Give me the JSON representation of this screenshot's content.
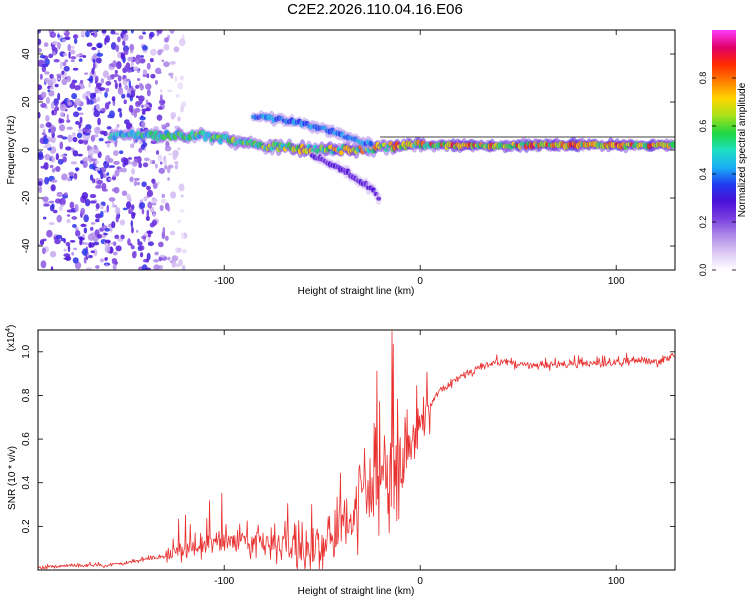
{
  "title": "C2E2.2026.110.04.16.E06",
  "colors": {
    "snr_line": "#e8302f",
    "colormap": [
      "#ffffff",
      "#ddc9f5",
      "#b08be8",
      "#7a3fe0",
      "#4b0fd8",
      "#1f3cf0",
      "#1ab0f5",
      "#1ee0c0",
      "#20d640",
      "#a8e31a",
      "#ffd400",
      "#ff8000",
      "#ff2a00",
      "#e0006a",
      "#ff3cff"
    ]
  },
  "chart_data": [
    {
      "type": "heatmap",
      "title": "",
      "xlabel": "Height of straight line (km)",
      "ylabel": "Frequency (Hz)",
      "xlim": [
        -195,
        130
      ],
      "ylim": [
        -50,
        50
      ],
      "xticks": [
        -100,
        0,
        100
      ],
      "yticks": [
        -40,
        -20,
        0,
        20,
        40
      ],
      "colorbar": {
        "label": "Normalized spectral amplitude",
        "range": [
          0,
          1
        ],
        "ticks": [
          0.0,
          0.2,
          0.4,
          0.6,
          0.8
        ]
      },
      "features": [
        {
          "name": "noise region",
          "x_range": [
            -195,
            -120
          ],
          "freq_range": [
            -50,
            50
          ],
          "amplitude": 0.25
        },
        {
          "name": "main band",
          "x_range": [
            -158,
            130
          ],
          "freq": [
            [
              -158,
              6
            ],
            [
              -110,
              6
            ],
            [
              -90,
              3
            ],
            [
              -70,
              1
            ],
            [
              -40,
              0
            ],
            [
              -20,
              1
            ],
            [
              0,
              2
            ],
            [
              50,
              2
            ],
            [
              130,
              2
            ]
          ],
          "amplitude": [
            0.3,
            0.9
          ]
        },
        {
          "name": "upper branch",
          "x_range": [
            -85,
            -25
          ],
          "freq": [
            [
              -85,
              14
            ],
            [
              -65,
              12
            ],
            [
              -45,
              8
            ],
            [
              -30,
              3
            ]
          ],
          "amplitude": 0.45
        },
        {
          "name": "lower branch",
          "x_range": [
            -55,
            -20
          ],
          "freq": [
            [
              -55,
              -2
            ],
            [
              -40,
              -8
            ],
            [
              -25,
              -16
            ],
            [
              -20,
              -21
            ]
          ],
          "amplitude": 0.3
        }
      ]
    },
    {
      "type": "line",
      "title": "",
      "xlabel": "Height of straight line (km)",
      "ylabel": "SNR (10 * v/v)",
      "y_scale_label": "(x10",
      "y_scale_exp": "4",
      "y_scale_suffix": ")",
      "xlim": [
        -195,
        130
      ],
      "ylim": [
        0,
        1.1
      ],
      "xticks": [
        -100,
        0,
        100
      ],
      "yticks": [
        0.2,
        0.4,
        0.6,
        0.8,
        1.0
      ],
      "series": [
        {
          "name": "SNR",
          "x": [
            -195,
            -180,
            -160,
            -150,
            -140,
            -130,
            -120,
            -110,
            -100,
            -90,
            -80,
            -70,
            -60,
            -50,
            -40,
            -35,
            -30,
            -25,
            -20,
            -18,
            -15,
            -10,
            -5,
            0,
            5,
            10,
            20,
            30,
            40,
            50,
            60,
            70,
            80,
            90,
            100,
            110,
            120,
            130
          ],
          "values": [
            0.01,
            0.02,
            0.02,
            0.03,
            0.05,
            0.06,
            0.08,
            0.1,
            0.12,
            0.13,
            0.12,
            0.1,
            0.09,
            0.1,
            0.2,
            0.25,
            0.3,
            0.35,
            0.4,
            0.45,
            0.4,
            0.45,
            0.55,
            0.65,
            0.75,
            0.82,
            0.88,
            0.92,
            0.95,
            0.94,
            0.93,
            0.94,
            0.95,
            0.94,
            0.95,
            0.96,
            0.95,
            0.98
          ]
        }
      ]
    }
  ]
}
